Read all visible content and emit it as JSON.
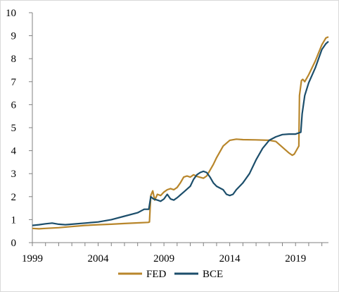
{
  "chart_data": {
    "type": "line",
    "title": "",
    "xlabel": "",
    "ylabel": "",
    "xlim": [
      1999,
      2021.5
    ],
    "ylim": [
      0,
      10
    ],
    "x_ticks": [
      1999,
      2004,
      2009,
      2014,
      2019
    ],
    "x_tick_labels": [
      "1999",
      "2004",
      "2009",
      "2014",
      "2019"
    ],
    "y_ticks": [
      0,
      1,
      2,
      3,
      4,
      5,
      6,
      7,
      8,
      9,
      10
    ],
    "y_tick_labels": [
      "0",
      "1",
      "2",
      "3",
      "4",
      "5",
      "6",
      "7",
      "8",
      "9",
      "10"
    ],
    "grid": false,
    "legend_position": "bottom",
    "series": [
      {
        "name": "FED",
        "color": "#B8862B",
        "points": [
          [
            1999.0,
            0.62
          ],
          [
            1999.5,
            0.6
          ],
          [
            2000.0,
            0.62
          ],
          [
            2001.0,
            0.65
          ],
          [
            2002.0,
            0.7
          ],
          [
            2003.0,
            0.75
          ],
          [
            2004.0,
            0.78
          ],
          [
            2005.0,
            0.8
          ],
          [
            2006.0,
            0.83
          ],
          [
            2007.0,
            0.86
          ],
          [
            2007.8,
            0.88
          ],
          [
            2007.9,
            0.9
          ],
          [
            2008.0,
            2.05
          ],
          [
            2008.15,
            2.25
          ],
          [
            2008.3,
            1.85
          ],
          [
            2008.5,
            2.1
          ],
          [
            2008.75,
            2.05
          ],
          [
            2009.0,
            2.2
          ],
          [
            2009.25,
            2.3
          ],
          [
            2009.5,
            2.35
          ],
          [
            2009.75,
            2.3
          ],
          [
            2010.0,
            2.4
          ],
          [
            2010.25,
            2.6
          ],
          [
            2010.5,
            2.85
          ],
          [
            2010.75,
            2.9
          ],
          [
            2011.0,
            2.85
          ],
          [
            2011.25,
            2.95
          ],
          [
            2011.5,
            2.88
          ],
          [
            2012.0,
            2.8
          ],
          [
            2012.25,
            2.9
          ],
          [
            2012.5,
            3.15
          ],
          [
            2012.75,
            3.4
          ],
          [
            2013.0,
            3.7
          ],
          [
            2013.5,
            4.2
          ],
          [
            2014.0,
            4.45
          ],
          [
            2014.5,
            4.5
          ],
          [
            2015.0,
            4.48
          ],
          [
            2016.0,
            4.47
          ],
          [
            2017.0,
            4.45
          ],
          [
            2017.5,
            4.4
          ],
          [
            2018.0,
            4.15
          ],
          [
            2018.5,
            3.9
          ],
          [
            2018.75,
            3.8
          ],
          [
            2018.9,
            3.85
          ],
          [
            2019.1,
            4.05
          ],
          [
            2019.25,
            4.2
          ],
          [
            2019.3,
            6.4
          ],
          [
            2019.45,
            7.05
          ],
          [
            2019.55,
            7.1
          ],
          [
            2019.7,
            7.0
          ],
          [
            2020.0,
            7.3
          ],
          [
            2020.5,
            7.9
          ],
          [
            2021.0,
            8.6
          ],
          [
            2021.3,
            8.9
          ],
          [
            2021.5,
            8.95
          ]
        ]
      },
      {
        "name": "BCE",
        "color": "#1C4E6B",
        "points": [
          [
            1999.0,
            0.75
          ],
          [
            1999.5,
            0.78
          ],
          [
            2000.0,
            0.82
          ],
          [
            2000.5,
            0.85
          ],
          [
            2001.0,
            0.8
          ],
          [
            2001.5,
            0.78
          ],
          [
            2002.0,
            0.8
          ],
          [
            2003.0,
            0.85
          ],
          [
            2004.0,
            0.9
          ],
          [
            2005.0,
            1.0
          ],
          [
            2006.0,
            1.15
          ],
          [
            2007.0,
            1.3
          ],
          [
            2007.5,
            1.45
          ],
          [
            2007.85,
            1.45
          ],
          [
            2008.0,
            2.0
          ],
          [
            2008.2,
            1.9
          ],
          [
            2008.5,
            1.85
          ],
          [
            2008.75,
            1.8
          ],
          [
            2009.0,
            1.9
          ],
          [
            2009.25,
            2.1
          ],
          [
            2009.5,
            1.9
          ],
          [
            2009.75,
            1.85
          ],
          [
            2010.0,
            1.95
          ],
          [
            2010.5,
            2.2
          ],
          [
            2011.0,
            2.45
          ],
          [
            2011.25,
            2.75
          ],
          [
            2011.5,
            2.95
          ],
          [
            2011.75,
            3.05
          ],
          [
            2012.0,
            3.1
          ],
          [
            2012.25,
            3.05
          ],
          [
            2012.5,
            2.85
          ],
          [
            2012.75,
            2.6
          ],
          [
            2013.0,
            2.45
          ],
          [
            2013.5,
            2.3
          ],
          [
            2013.75,
            2.1
          ],
          [
            2014.0,
            2.05
          ],
          [
            2014.25,
            2.1
          ],
          [
            2014.5,
            2.3
          ],
          [
            2015.0,
            2.6
          ],
          [
            2015.5,
            3.0
          ],
          [
            2016.0,
            3.6
          ],
          [
            2016.5,
            4.1
          ],
          [
            2017.0,
            4.45
          ],
          [
            2017.5,
            4.6
          ],
          [
            2018.0,
            4.7
          ],
          [
            2018.5,
            4.72
          ],
          [
            2019.0,
            4.72
          ],
          [
            2019.4,
            4.8
          ],
          [
            2019.5,
            5.6
          ],
          [
            2019.7,
            6.4
          ],
          [
            2020.0,
            6.95
          ],
          [
            2020.5,
            7.6
          ],
          [
            2021.0,
            8.4
          ],
          [
            2021.3,
            8.65
          ],
          [
            2021.5,
            8.75
          ]
        ]
      }
    ]
  }
}
